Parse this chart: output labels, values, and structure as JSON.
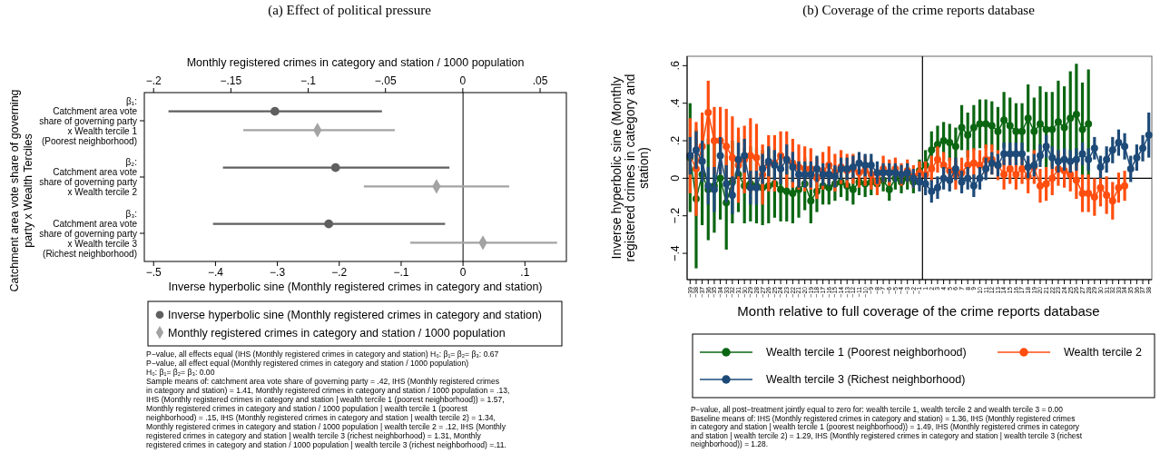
{
  "chart_data": [
    {
      "type": "scatter",
      "orientation": "horizontal",
      "title": "(a) Effect of political pressure",
      "xlabel": "Inverse hyperbolic sine (Monthly registered crimes in category and station)",
      "x2label": "Monthly registered crimes in category and station / 1000 population",
      "ylabel": "Catchment area vote share of governing party x Wealth Terciles",
      "categories": [
        "β₁:\nCatchment area vote\nshare of governing party\nx Wealth tercile 1\n(Poorest neighborhood)",
        "β₂:\nCatchment area vote\nshare of governing party\nx Wealth tercile 2",
        "β₃:\nCatchment area vote\nshare of governing party\nx Wealth tercile 3\n(Richest neighborhood)"
      ],
      "xlim": [
        -0.515,
        0.167
      ],
      "xticks": [
        {
          "value": -0.5,
          "label": "−.5"
        },
        {
          "value": -0.4,
          "label": "−.4"
        },
        {
          "value": -0.3,
          "label": "−.3"
        },
        {
          "value": -0.2,
          "label": "−.2"
        },
        {
          "value": -0.1,
          "label": "−.1"
        },
        0,
        {
          "value": 0.1,
          "label": ".1"
        }
      ],
      "x2lim": [
        -0.206,
        0.067
      ],
      "x2ticks": [
        {
          "value": -0.2,
          "label": "−.2"
        },
        {
          "value": -0.15,
          "label": "−.15"
        },
        {
          "value": -0.1,
          "label": "−.1"
        },
        {
          "value": -0.05,
          "label": "−.05"
        },
        0,
        {
          "value": 0.05,
          "label": ".05"
        }
      ],
      "series": [
        {
          "name": "Inverse hyperbolic sine (Monthly registered crimes in category and station)",
          "color": "#5f5f5f",
          "marker": "circle",
          "values": [
            -0.304,
            -0.206,
            -0.217
          ],
          "errors": [
            [
              -0.476,
              -0.131
            ],
            [
              -0.388,
              -0.022
            ],
            [
              -0.404,
              -0.029
            ]
          ]
        },
        {
          "name": "Monthly registered crimes in category and station / 1000 population",
          "color": "#a3a3a3",
          "marker": "diamond",
          "axis": "x2",
          "values": [
            -0.094,
            -0.017,
            0.013
          ],
          "errors": [
            [
              -0.142,
              -0.044
            ],
            [
              -0.064,
              0.03
            ],
            [
              -0.034,
              0.061
            ]
          ]
        }
      ],
      "ref_lines": [
        {
          "axis": "x",
          "value": 0
        }
      ],
      "legend": "bottom",
      "annotations": [
        "P−value, all effects equal (IHS (Monthly registered crimes in category and station) H₀: β₁= β₂= β₃: 0.67",
        "P−value, all effect equal (Monthly registered crimes in category and station / 1000 population)",
        "H₀: β₁= β₂= β₃: 0.00",
        "Sample means of: catchment area vote share of governing party = .42, IHS (Monthly registered crimes",
        "in category and station) = 1.41, Monthly registered crimes in category and station / 1000 population = .13,",
        "IHS (Monthly registered crimes in category and station | wealth tercile 1 (poorest neighborhood)) = 1.57,",
        "Monthly registered crimes in category and station / 1000 population | wealth tercile 1 (poorest",
        "neighborhood) = .15, IHS (Monthly registered crimes in category and station | wealth tercile 2) = 1.34,",
        "Monthly registered crimes in category and station / 1000 population | wealth tercile 2 = .12, IHS (Monthly",
        "registered crimes in category and station | wealth tercile 3 (richest neighborhood) = 1.31, Monthly",
        "registered crimes in category and station / 1000 population | wealth tercile 3 (richest neighborhood) =.11."
      ]
    },
    {
      "type": "line",
      "title": "(b) Coverage of the crime reports database",
      "xlabel": "Month relative to full coverage of the crime reports database",
      "ylabel": "Inverse hyperbolic sine (Monthly registered crimes in category and station)",
      "categories": [
        "−39",
        "−38",
        "−37",
        "−36",
        "−35",
        "−34",
        "−33",
        "−32",
        "−31",
        "−30",
        "−29",
        "−28",
        "−27",
        "−26",
        "−25",
        "−24",
        "−23",
        "−22",
        "−21",
        "−20",
        "−19",
        "−18",
        "−17",
        "−16",
        "−15",
        "−14",
        "−13",
        "−12",
        "−11",
        "−10",
        "−9",
        "−8",
        "−7",
        "−6",
        "−5",
        "−4",
        "−3",
        "−2",
        "−1",
        "1",
        "2",
        "3",
        "4",
        "5",
        "6",
        "7",
        "8",
        "9",
        "10",
        "11",
        "12",
        "13",
        "14",
        "15",
        "16",
        "17",
        "18",
        "19",
        "20",
        "21",
        "22",
        "23",
        "24",
        "25",
        "26",
        "27",
        "28",
        "29",
        "30",
        "31",
        "32",
        "33",
        "34",
        "35",
        "36",
        "37",
        "38"
      ],
      "ylim": [
        -0.54,
        0.65
      ],
      "yticks": [
        {
          "value": -0.4,
          "label": "−.4"
        },
        {
          "value": -0.2,
          "label": "−.2"
        },
        0,
        {
          "value": 0.2,
          "label": ".2"
        },
        {
          "value": 0.4,
          "label": ".4"
        },
        {
          "value": 0.6,
          "label": ".6"
        }
      ],
      "marker": "circle",
      "line_style": "solid",
      "series": [
        {
          "name": "Wealth tercile 1 (Poorest neighborhood)",
          "color": "#0b6612",
          "values": [
            0.11,
            -0.11,
            0.02,
            -0.06,
            -0.04,
            0,
            -0.13,
            -0.02,
            0.02,
            -0.04,
            -0.03,
            -0.04,
            -0.05,
            -0.04,
            -0.03,
            -0.06,
            -0.07,
            -0.08,
            -0.06,
            -0.03,
            -0.12,
            -0.07,
            -0.04,
            -0.05,
            -0.03,
            -0.02,
            -0.04,
            -0.06,
            -0.02,
            -0.03,
            -0.02,
            -0.03,
            -0.01,
            -0.06,
            0,
            -0.02,
            0,
            -0.02,
            0.04,
            0.07,
            0.15,
            0.18,
            0.2,
            0.19,
            0.17,
            0.27,
            0.23,
            0.27,
            0.29,
            0.29,
            0.28,
            0.25,
            0.31,
            0.28,
            0.25,
            0.25,
            0.32,
            0.25,
            0.29,
            0.26,
            0.26,
            0.3,
            0.27,
            0.32,
            0.34,
            0.26,
            0.29,
            null,
            null,
            null,
            null,
            null,
            null,
            null,
            null,
            null,
            null
          ],
          "errors": [
            0.29,
            0.37,
            0.27,
            0.27,
            0.25,
            0.22,
            0.25,
            0.22,
            0.2,
            0.2,
            0.2,
            0.2,
            0.2,
            0.2,
            0.18,
            0.17,
            0.16,
            0.16,
            0.15,
            0.14,
            0.12,
            0.11,
            0.1,
            0.09,
            0.09,
            0.08,
            0.08,
            0.08,
            0.07,
            0.07,
            0.07,
            null,
            0.06,
            0.06,
            0.06,
            0.06,
            0.06,
            0.06,
            0.06,
            0.08,
            0.1,
            0.1,
            0.1,
            0.1,
            0.1,
            0.12,
            0.12,
            0.12,
            0.13,
            0.13,
            0.13,
            0.13,
            0.15,
            0.15,
            0.15,
            0.15,
            0.18,
            0.18,
            0.2,
            0.2,
            0.2,
            0.22,
            0.22,
            0.25,
            0.27,
            0.25,
            0.29,
            null,
            null,
            null,
            null,
            null,
            null,
            null,
            null,
            null,
            null
          ]
        },
        {
          "name": "Wealth tercile 2",
          "color": "#ff4e0f",
          "values": [
            0.12,
            0.05,
            0.17,
            0.35,
            0.2,
            0.2,
            0.17,
            0.11,
            0.07,
            0.1,
            0.12,
            0.11,
            0.02,
            0.08,
            0.08,
            0.12,
            0.1,
            0.08,
            0.06,
            0.05,
            0.05,
            0,
            0.04,
            0.07,
            0.03,
            0.06,
            0.04,
            0.05,
            0.03,
            0.04,
            0.02,
            -0.02,
            0.05,
            0.03,
            0.05,
            0.02,
            0.04,
            0.01,
            0.03,
            0.02,
            0.05,
            0.1,
            0.07,
            0.04,
            0.02,
            0.03,
            0.07,
            0.08,
            0.07,
            0.1,
            0.1,
            0.07,
            0.02,
            0.05,
            0.02,
            0.05,
            0.01,
            0.06,
            -0.04,
            -0.03,
            0,
            0.05,
            0.04,
            0.02,
            -0.01,
            -0.08,
            -0.08,
            -0.1,
            -0.05,
            -0.09,
            -0.12,
            -0.05,
            -0.04,
            null,
            null,
            null,
            null
          ],
          "errors": [
            0.2,
            0.25,
            0.18,
            0.17,
            0.18,
            0.18,
            0.2,
            0.22,
            0.2,
            0.18,
            0.2,
            0.18,
            0.16,
            0.15,
            0.15,
            0.13,
            0.15,
            0.13,
            0.12,
            0.12,
            0.11,
            0.11,
            0.1,
            0.1,
            0.1,
            0.09,
            0.09,
            0.08,
            0.08,
            0.08,
            0.08,
            0.07,
            0.07,
            0.07,
            0.06,
            0.06,
            0.06,
            0.06,
            0.06,
            0.07,
            0.07,
            0.07,
            0.07,
            0.07,
            0.08,
            0.08,
            0.08,
            0.08,
            0.08,
            0.08,
            0.08,
            0.08,
            0.08,
            0.08,
            0.08,
            0.08,
            0.09,
            0.09,
            0.09,
            0.09,
            0.09,
            0.09,
            0.09,
            0.09,
            0.1,
            0.1,
            0.1,
            0.1,
            0.1,
            0.1,
            0.1,
            0.08,
            0.08,
            null,
            null,
            null,
            null
          ]
        },
        {
          "name": "Wealth tercile 3 (Richest neighborhood)",
          "color": "#1d4a78",
          "values": [
            0.12,
            0.15,
            0.09,
            -0.04,
            -0.06,
            0.12,
            -0.03,
            -0.09,
            0.1,
            0.12,
            -0.05,
            -0.05,
            0.05,
            0.09,
            0.07,
            0.05,
            0.1,
            0.06,
            0.02,
            0.02,
            0.02,
            0.05,
            0.02,
            0.02,
            0.01,
            0.05,
            0.05,
            0.06,
            0.08,
            0.07,
            0.07,
            0.03,
            0.03,
            0.03,
            0.03,
            0.02,
            0.03,
            0,
            -0.02,
            -0.03,
            -0.07,
            -0.05,
            0,
            -0.01,
            0.05,
            -0.02,
            0,
            -0.04,
            0,
            0.05,
            0.08,
            0.07,
            0.13,
            0.13,
            0.13,
            0.13,
            0.06,
            0.07,
            0.12,
            0.17,
            0.11,
            0.09,
            0.1,
            0.09,
            0.1,
            0.13,
            0.1,
            0.16,
            0.06,
            0.1,
            0.15,
            0.19,
            0.17,
            0.05,
            0.11,
            0.16,
            0.23
          ],
          "errors": [
            0.1,
            0.1,
            0.11,
            0.1,
            0.12,
            0.1,
            0.1,
            0.1,
            0.09,
            0.09,
            0.09,
            0.09,
            0.08,
            0.08,
            0.08,
            0.08,
            0.08,
            0.08,
            0.07,
            0.07,
            0.07,
            0.07,
            0.06,
            0.06,
            0.06,
            0.06,
            0.06,
            0.06,
            0.06,
            0.06,
            0.06,
            0.06,
            0.05,
            0.05,
            0.05,
            0.05,
            0.05,
            0.05,
            0.05,
            0.06,
            0.06,
            0.06,
            0.06,
            0.06,
            0.06,
            0.06,
            0.06,
            0.06,
            0.06,
            0.06,
            0.06,
            0.06,
            0.06,
            0.06,
            0.06,
            0.06,
            0.06,
            0.06,
            0.06,
            0.06,
            0.06,
            0.06,
            0.06,
            0.06,
            0.06,
            0.06,
            0.06,
            0.06,
            0.06,
            0.07,
            0.07,
            0.07,
            0.07,
            0.07,
            0.07,
            0.07,
            0.12
          ]
        }
      ],
      "ref_lines": [
        {
          "axis": "y",
          "value": 0
        }
      ],
      "legend": "bottom",
      "annotations": [
        "P−value, all post−treatment jointly equal to zero for: wealth tercile 1, wealth tercile 2 and wealth tercile 3 = 0.00",
        "Baseline means of: IHS (Monthly registered crimes in category and station) = 1.36, IHS (Monthly registered crimes",
        "in category and station | wealth tercile 1 (poorest neighborhood)) = 1.49, IHS (Monthly registered crimes in category",
        "and station | wealth tercile 2) = 1.29, IHS (Monthly registered crimes in category and station | wealth tercile 3 (richest",
        "neighborhood)) = 1.28."
      ]
    }
  ]
}
